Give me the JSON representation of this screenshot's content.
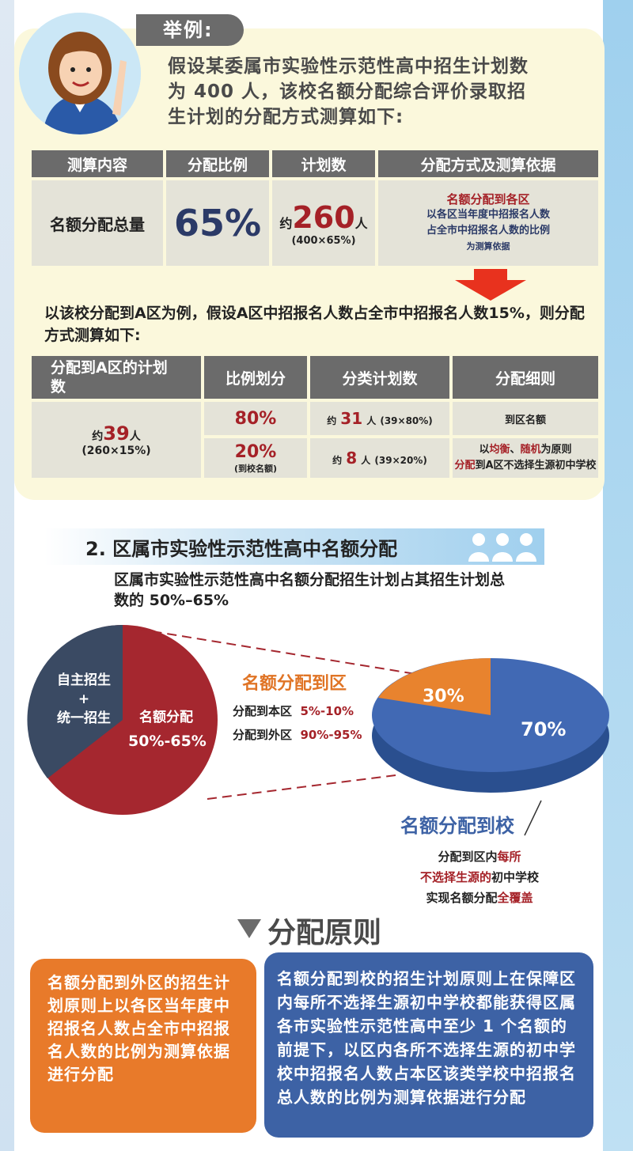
{
  "example": {
    "tag": "举例:",
    "intro": "假设某委属市实验性示范性高中招生计划数为 400 人，该校名额分配综合评价录取招生计划的分配方式测算如下:"
  },
  "table1": {
    "headers": [
      "测算内容",
      "分配比例",
      "计划数",
      "分配方式及测算依据"
    ],
    "row": {
      "content": "名额分配总量",
      "ratio": "65%",
      "plan_prefix": "约",
      "plan_num": "260",
      "plan_unit": "人",
      "plan_calc": "(400×65%)",
      "method_title": "名额分配到各区",
      "method_line1": "以各区当年度中招报名人数",
      "method_line2": "占全市中招报名人数的比例",
      "method_line3": "为测算依据"
    }
  },
  "para2": "以该校分配到A区为例，假设A区中招报名人数占全市中招报名人数15%，则分配方式测算如下:",
  "table2": {
    "headers": [
      "分配到A区的计划数",
      "比例划分",
      "分类计划数",
      "分配细则"
    ],
    "a_prefix": "约",
    "a_num": "39",
    "a_unit": "人",
    "a_calc": "(260×15%)",
    "rows": [
      {
        "ratio": "80%",
        "ratio_note": "",
        "count_prefix": "约",
        "count": "31",
        "count_unit": "人",
        "count_calc": "(39×80%)",
        "rule": "到区名额"
      },
      {
        "ratio": "20%",
        "ratio_note": "(到校名额)",
        "count_prefix": "约",
        "count": "8",
        "count_unit": "人",
        "count_calc": "(39×20%)",
        "rule_l1_a": "以",
        "rule_l1_b": "均衡",
        "rule_l1_c": "、",
        "rule_l1_d": "随机",
        "rule_l1_e": "为原则",
        "rule_l2_a": "分配",
        "rule_l2_b": "到A区不选择生源初中学校"
      }
    ]
  },
  "section2": {
    "title": "2.  区属市实验性示范性高中名额分配",
    "desc": "区属市实验性示范性高中名额分配招生计划占其招生计划总数的 50%–65%"
  },
  "pie_left": {
    "slice1_l1": "自主招生",
    "slice1_l2": "+",
    "slice1_l3": "统一招生",
    "slice2_l1": "名额分配",
    "slice2_l2": "50%-65%"
  },
  "district": {
    "title": "名额分配到区",
    "own_label": "分配到本区",
    "own_value": "5%-10%",
    "other_label": "分配到外区",
    "other_value": "90%-95%"
  },
  "pie_right": {
    "orange": "30%",
    "blue": "70%"
  },
  "school": {
    "title": "名额分配到校",
    "l1_a": "分配到区内",
    "l1_b": "每所",
    "l2_a": "不选择生源的",
    "l2_b": "初中学校",
    "l3_a": "实现名额分配",
    "l3_b": "全覆盖"
  },
  "principle": {
    "title": "分配原则",
    "left": "名额分配到外区的招生计划原则上以各区当年度中招报名人数占全市中招报名人数的比例为测算依据进行分配",
    "right": "名额分配到校的招生计划原则上在保障区内每所不选择生源初中学校都能获得区属各市实验性示范性高中至少 1 个名额的前提下，以区内各所不选择生源的初中学校中招报名人数占本区该类学校中招报名总人数的比例为测算依据进行分配"
  },
  "colors": {
    "gray": "#6b6b6b",
    "red": "#a52127",
    "navy": "#2b3a67",
    "orange": "#e87a2a",
    "blue": "#3d62a5"
  }
}
